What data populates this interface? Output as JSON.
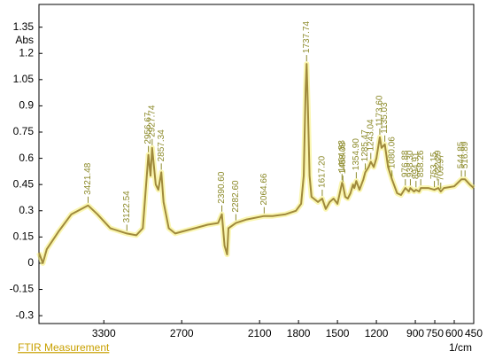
{
  "chart_data": {
    "type": "line",
    "footer": "FTIR Measurement",
    "ylabel": "Abs",
    "xlabel": "1/cm",
    "xlim": [
      3800,
      450
    ],
    "ylim": [
      -0.345,
      1.48
    ],
    "xticks": [
      3300,
      2700,
      2100,
      1800,
      1500,
      1200,
      900,
      750,
      600,
      450
    ],
    "yticks": [
      1.35,
      1.2,
      1.05,
      0.9,
      0.75,
      0.6,
      0.45,
      0.3,
      0.15,
      0,
      -0.15,
      -0.3
    ],
    "series": [
      {
        "color": "#a08a3c",
        "x": [
          3800,
          3770,
          3740,
          3650,
          3550,
          3421.48,
          3350,
          3250,
          3122.54,
          3050,
          3000,
          2956.67,
          2940,
          2927.74,
          2900,
          2880,
          2857.34,
          2840,
          2800,
          2750,
          2700,
          2600,
          2500,
          2420,
          2390.6,
          2370,
          2350,
          2340,
          2282.6,
          2200,
          2064.66,
          2000,
          1900,
          1820,
          1780,
          1760,
          1745,
          1737.74,
          1728,
          1715,
          1700,
          1650,
          1617.2,
          1590,
          1560,
          1530,
          1500,
          1464.83,
          1458.08,
          1440,
          1420,
          1400,
          1380,
          1370,
          1354.9,
          1330,
          1300,
          1285.47,
          1260,
          1243.04,
          1220,
          1200,
          1173.6,
          1160,
          1135.03,
          1110,
          1080.06,
          1060,
          1040,
          1010,
          976.88,
          950,
          938.3,
          910,
          894.91,
          870,
          858.26,
          800,
          753.15,
          722.29,
          703.97,
          680,
          600,
          544.85,
          516.89,
          480,
          450
        ],
        "values": [
          0.06,
          0.0,
          0.08,
          0.18,
          0.28,
          0.33,
          0.28,
          0.2,
          0.17,
          0.16,
          0.2,
          0.62,
          0.5,
          0.66,
          0.45,
          0.42,
          0.52,
          0.35,
          0.2,
          0.17,
          0.18,
          0.2,
          0.22,
          0.23,
          0.28,
          0.1,
          0.05,
          0.2,
          0.23,
          0.25,
          0.27,
          0.27,
          0.28,
          0.3,
          0.34,
          0.5,
          1.0,
          1.14,
          0.9,
          0.5,
          0.38,
          0.35,
          0.37,
          0.31,
          0.35,
          0.37,
          0.34,
          0.46,
          0.45,
          0.38,
          0.37,
          0.4,
          0.45,
          0.43,
          0.47,
          0.42,
          0.48,
          0.52,
          0.55,
          0.58,
          0.55,
          0.6,
          0.72,
          0.66,
          0.68,
          0.55,
          0.48,
          0.44,
          0.4,
          0.39,
          0.43,
          0.41,
          0.43,
          0.41,
          0.42,
          0.41,
          0.43,
          0.43,
          0.42,
          0.43,
          0.41,
          0.43,
          0.44,
          0.48,
          0.48,
          0.45,
          0.43
        ]
      }
    ],
    "peaks": [
      {
        "value": 3421.48,
        "label": "3421.48"
      },
      {
        "value": 3122.54,
        "label": "3122.54"
      },
      {
        "value": 2956.67,
        "label": "2956.67"
      },
      {
        "value": 2927.74,
        "label": "2927.74"
      },
      {
        "value": 2857.34,
        "label": "2857.34"
      },
      {
        "value": 2390.6,
        "label": "2390.60"
      },
      {
        "value": 2282.6,
        "label": "2282.60"
      },
      {
        "value": 2064.66,
        "label": "2064.66"
      },
      {
        "value": 1737.74,
        "label": "1737.74"
      },
      {
        "value": 1617.2,
        "label": "1617.20"
      },
      {
        "value": 1464.83,
        "label": "1464.83"
      },
      {
        "value": 1458.08,
        "label": "1458.08"
      },
      {
        "value": 1354.9,
        "label": "1354.90"
      },
      {
        "value": 1285.47,
        "label": "1285.47"
      },
      {
        "value": 1243.04,
        "label": "1243.04"
      },
      {
        "value": 1173.6,
        "label": "1173.60"
      },
      {
        "value": 1135.03,
        "label": "1135.03"
      },
      {
        "value": 1080.06,
        "label": "1080.06"
      },
      {
        "value": 976.88,
        "label": "976.88"
      },
      {
        "value": 938.3,
        "label": "938.30"
      },
      {
        "value": 894.91,
        "label": "894.91"
      },
      {
        "value": 858.26,
        "label": "858.26"
      },
      {
        "value": 753.15,
        "label": "753.15"
      },
      {
        "value": 722.29,
        "label": "722.29"
      },
      {
        "value": 703.97,
        "label": "703.97"
      },
      {
        "value": 544.85,
        "label": "544.85"
      },
      {
        "value": 516.89,
        "label": "516.89"
      }
    ]
  }
}
